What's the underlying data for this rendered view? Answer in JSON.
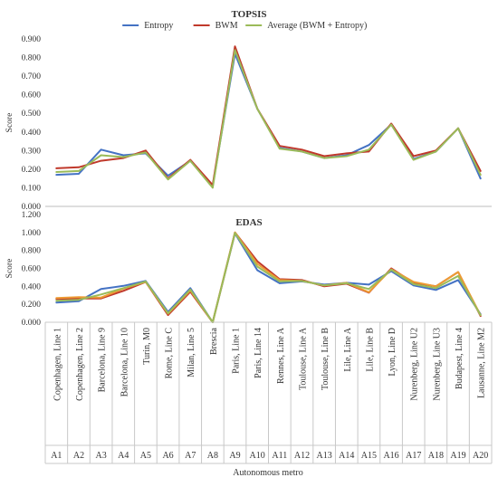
{
  "legend_placement": "top",
  "x_axis": {
    "codes": [
      "A1",
      "A2",
      "A3",
      "A4",
      "A5",
      "A6",
      "A7",
      "A8",
      "A9",
      "A10",
      "A11",
      "A12",
      "A13",
      "A14",
      "A15",
      "A16",
      "A17",
      "A18",
      "A19",
      "A20"
    ],
    "names": [
      "Copenhagen, Line 1",
      "Copenhagen, Line 2",
      "Barcelona, Line 9",
      "Barcelona, Line 10",
      "Turin, M0",
      "Rome, Line C",
      "Milan, Line 5",
      "Brescia",
      "Paris, Line 1",
      "Paris, Line 14",
      "Rennes, Line A",
      "Toulouse, Line A",
      "Toulouse, Line B",
      "Lile, Line A",
      "Lile, Line B",
      "Lyon, Line D",
      "Nurenberg, Line U2",
      "Nurenberg, Line U3",
      "Budapest, Line 4",
      "Lausanne, Line M2"
    ],
    "label": "Autonomous metro"
  },
  "chart_data": [
    {
      "type": "line",
      "title": "TOPSIS",
      "ylabel": "Score",
      "ylim": [
        0,
        0.9
      ],
      "yticks": [
        "0.000",
        "0.100",
        "0.200",
        "0.300",
        "0.400",
        "0.500",
        "0.600",
        "0.700",
        "0.800",
        "0.900"
      ],
      "grid": false,
      "legend": "top",
      "series": [
        {
          "name": "Entropy",
          "color": "#4472c4",
          "values": [
            0.17,
            0.175,
            0.305,
            0.275,
            0.285,
            0.165,
            0.245,
            0.11,
            0.82,
            0.525,
            0.315,
            0.295,
            0.26,
            0.275,
            0.33,
            0.44,
            0.255,
            0.295,
            0.42,
            0.15
          ]
        },
        {
          "name": "BWM",
          "color": "#c0392b",
          "values": [
            0.205,
            0.21,
            0.245,
            0.26,
            0.3,
            0.15,
            0.25,
            0.115,
            0.86,
            0.525,
            0.325,
            0.305,
            0.27,
            0.285,
            0.295,
            0.445,
            0.27,
            0.3,
            0.42,
            0.19
          ]
        },
        {
          "name": "Average (BWM + Entropy)",
          "color": "#9bbb59",
          "values": [
            0.185,
            0.19,
            0.275,
            0.265,
            0.29,
            0.145,
            0.245,
            0.1,
            0.84,
            0.525,
            0.31,
            0.295,
            0.26,
            0.27,
            0.305,
            0.44,
            0.25,
            0.295,
            0.42,
            0.17
          ]
        }
      ]
    },
    {
      "type": "line",
      "title": "EDAS",
      "ylabel": "Score",
      "ylim": [
        0,
        1.2
      ],
      "yticks": [
        "0.000",
        "0.200",
        "0.400",
        "0.600",
        "0.800",
        "1.000",
        "1.200"
      ],
      "grid": false,
      "series": [
        {
          "name": "Entropy",
          "color": "#4472c4",
          "values": [
            0.22,
            0.235,
            0.37,
            0.405,
            0.46,
            0.115,
            0.38,
            0.0,
            0.99,
            0.58,
            0.435,
            0.455,
            0.42,
            0.44,
            0.42,
            0.57,
            0.41,
            0.36,
            0.47,
            0.09
          ]
        },
        {
          "name": "BWM",
          "color": "#c0392b",
          "values": [
            0.26,
            0.265,
            0.265,
            0.35,
            0.45,
            0.08,
            0.34,
            0.0,
            1.0,
            0.68,
            0.48,
            0.47,
            0.4,
            0.43,
            0.33,
            0.6,
            0.44,
            0.4,
            0.56,
            0.07
          ]
        },
        {
          "name": "Average (BWM + Entropy)",
          "color": "#ed9b33",
          "values": [
            0.27,
            0.28,
            0.275,
            0.375,
            0.45,
            0.095,
            0.355,
            0.0,
            1.0,
            0.65,
            0.47,
            0.46,
            0.41,
            0.44,
            0.335,
            0.59,
            0.45,
            0.4,
            0.56,
            0.08
          ]
        },
        {
          "name": "",
          "color": "#9bbb59",
          "values": [
            0.24,
            0.25,
            0.31,
            0.38,
            0.455,
            0.1,
            0.365,
            0.0,
            0.995,
            0.62,
            0.455,
            0.46,
            0.41,
            0.435,
            0.37,
            0.585,
            0.425,
            0.38,
            0.515,
            0.08
          ]
        }
      ]
    }
  ]
}
